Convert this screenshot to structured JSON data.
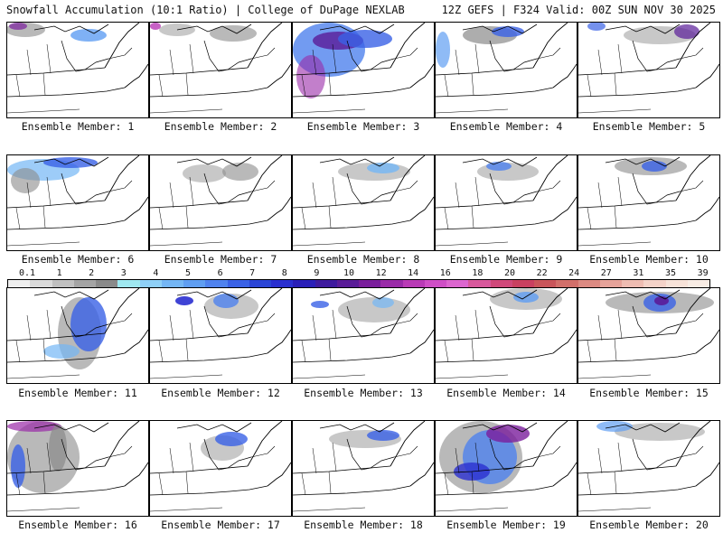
{
  "header": {
    "title": "Snowfall Accumulation (10:1 Ratio) | College of DuPage NEXLAB",
    "run_info": "12Z GEFS | F324 Valid: 00Z SUN NOV 30 2025"
  },
  "legend": {
    "tick_labels": [
      "0.1",
      "1",
      "2",
      "3",
      "4",
      "5",
      "6",
      "7",
      "8",
      "9",
      "10",
      "12",
      "14",
      "16",
      "18",
      "20",
      "22",
      "24",
      "27",
      "31",
      "35",
      "39"
    ],
    "colors": [
      "#eeeeee",
      "#dadada",
      "#c0c0c0",
      "#a4a4a4",
      "#8a8a8a",
      "#9fe8f0",
      "#8fd0f7",
      "#74b6f5",
      "#5f9ef2",
      "#4f82ee",
      "#3a62e6",
      "#2b45d6",
      "#2a2fd0",
      "#2a1fb8",
      "#3e1a9e",
      "#5a1c98",
      "#7a1e9c",
      "#9a2aa8",
      "#b93ab6",
      "#cf4ec6",
      "#dc66cf",
      "#d8589c",
      "#d0487a",
      "#c94060",
      "#c9555a",
      "#d26f6a",
      "#dc8a82",
      "#e6a39a",
      "#eebcb2",
      "#f4d2c8",
      "#f7e2d8",
      "#f8ece4"
    ]
  },
  "panels": [
    {
      "label": "Ensemble Member: 1"
    },
    {
      "label": "Ensemble Member: 2"
    },
    {
      "label": "Ensemble Member: 3"
    },
    {
      "label": "Ensemble Member: 4"
    },
    {
      "label": "Ensemble Member: 5"
    },
    {
      "label": "Ensemble Member: 6"
    },
    {
      "label": "Ensemble Member: 7"
    },
    {
      "label": "Ensemble Member: 8"
    },
    {
      "label": "Ensemble Member: 9"
    },
    {
      "label": "Ensemble Member: 10"
    },
    {
      "label": "Ensemble Member: 11"
    },
    {
      "label": "Ensemble Member: 12"
    },
    {
      "label": "Ensemble Member: 13"
    },
    {
      "label": "Ensemble Member: 14"
    },
    {
      "label": "Ensemble Member: 15"
    },
    {
      "label": "Ensemble Member: 16"
    },
    {
      "label": "Ensemble Member: 17"
    },
    {
      "label": "Ensemble Member: 18"
    },
    {
      "label": "Ensemble Member: 19"
    },
    {
      "label": "Ensemble Member: 20"
    }
  ]
}
